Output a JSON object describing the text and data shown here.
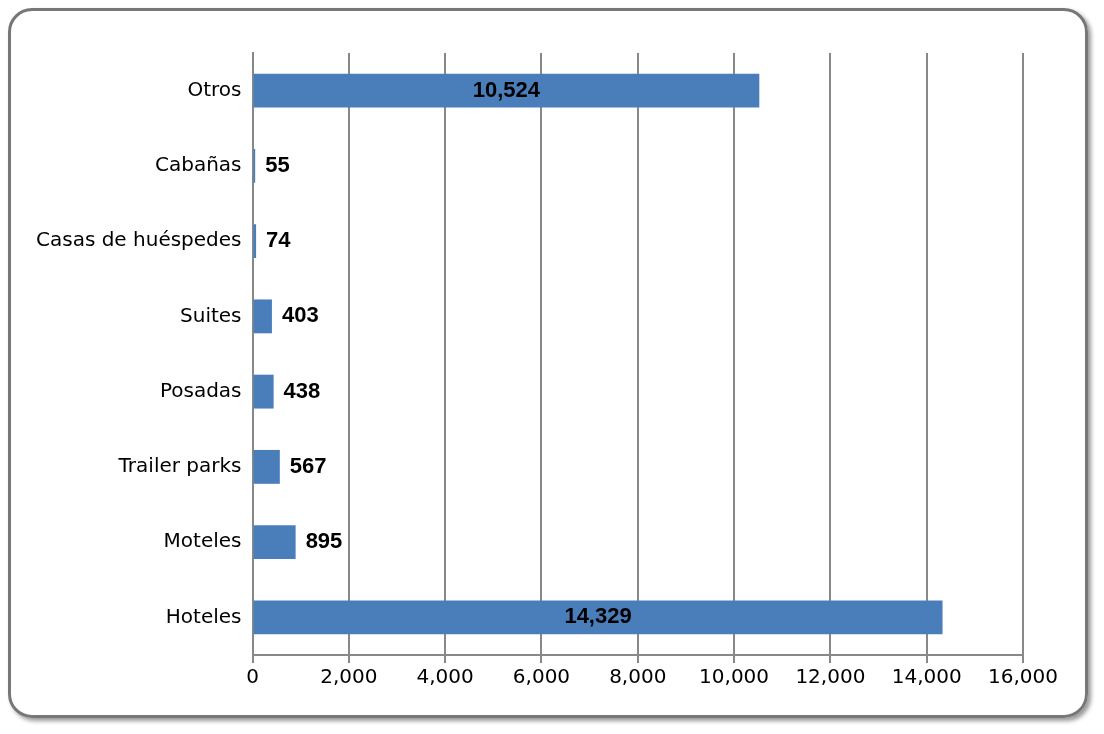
{
  "chart_data": {
    "type": "bar",
    "orientation": "horizontal",
    "categories": [
      "Otros",
      "Cabañas",
      "Casas de huéspedes",
      "Suites",
      "Posadas",
      "Trailer parks",
      "Moteles",
      "Hoteles"
    ],
    "values": [
      10524,
      55,
      74,
      403,
      438,
      567,
      895,
      14329
    ],
    "value_labels": [
      "10,524",
      "55",
      "74",
      "403",
      "438",
      "567",
      "895",
      "14,329"
    ],
    "color": "#4a7ebb",
    "xlim": [
      0,
      16000
    ],
    "xticks": [
      0,
      {
        "value": 2000,
        "label": "2,000"
      },
      {
        "value": 4000,
        "label": "4,000"
      },
      {
        "value": 6000,
        "label": "6,000"
      },
      {
        "value": 8000,
        "label": "8,000"
      },
      {
        "value": 10000,
        "label": "10,000"
      },
      {
        "value": 12000,
        "label": "12,000"
      },
      {
        "value": 14000,
        "label": "14,000"
      },
      {
        "value": 16000,
        "label": "16,000"
      }
    ],
    "grid": "x",
    "legend": false
  }
}
